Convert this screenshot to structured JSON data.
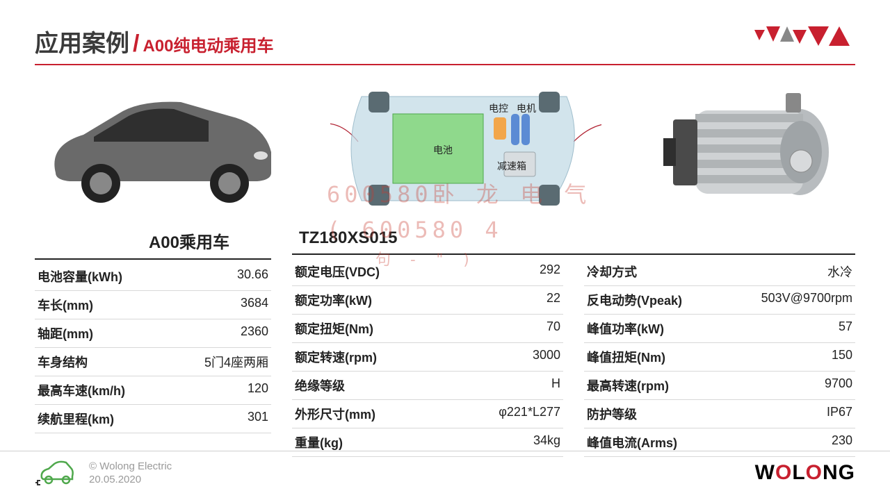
{
  "header": {
    "title_main": "应用案例",
    "title_sub": "A00纯电动乘用车"
  },
  "diagram_labels": {
    "battery": "电池",
    "controller": "电控",
    "motor": "电机",
    "gearbox": "减速箱"
  },
  "watermark": {
    "line1": "600580卧 龙 电 气",
    "line2": "( 600580    4",
    "line3": "句 -   \"   )"
  },
  "vehicle_table": {
    "title": "A00乘用车",
    "rows": [
      {
        "label": "电池容量(kWh)",
        "value": "30.66"
      },
      {
        "label": "车长(mm)",
        "value": "3684"
      },
      {
        "label": "轴距(mm)",
        "value": "2360"
      },
      {
        "label": "车身结构",
        "value": "5门4座两厢"
      },
      {
        "label": "最高车速(km/h)",
        "value": "120"
      },
      {
        "label": "续航里程(km)",
        "value": "301"
      }
    ]
  },
  "motor_table": {
    "title": "TZ180XS015",
    "left_rows": [
      {
        "label": "额定电压(VDC)",
        "value": "292"
      },
      {
        "label": "额定功率(kW)",
        "value": "22"
      },
      {
        "label": "额定扭矩(Nm)",
        "value": "70"
      },
      {
        "label": "额定转速(rpm)",
        "value": "3000"
      },
      {
        "label": "绝缘等级",
        "value": "H"
      },
      {
        "label": "外形尺寸(mm)",
        "value": "φ221*L277"
      },
      {
        "label": "重量(kg)",
        "value": "34kg"
      }
    ],
    "right_rows": [
      {
        "label": "冷却方式",
        "value": "水冷"
      },
      {
        "label": "反电动势(Vpeak)",
        "value": "503V@9700rpm"
      },
      {
        "label": "峰值功率(kW)",
        "value": "57"
      },
      {
        "label": "峰值扭矩(Nm)",
        "value": "150"
      },
      {
        "label": "最高转速(rpm)",
        "value": "9700"
      },
      {
        "label": "防护等级",
        "value": "IP67"
      },
      {
        "label": "峰值电流(Arms)",
        "value": "230"
      }
    ]
  },
  "footer": {
    "copyright": "© Wolong Electric",
    "date": "20.05.2020",
    "brand": "WOLONG"
  },
  "colors": {
    "accent": "#c8202f",
    "text": "#222222",
    "muted": "#9a9a9a",
    "battery_fill": "#8fd98c",
    "chassis_fill": "#c4dbe6",
    "wheel": "#6b7a80"
  }
}
